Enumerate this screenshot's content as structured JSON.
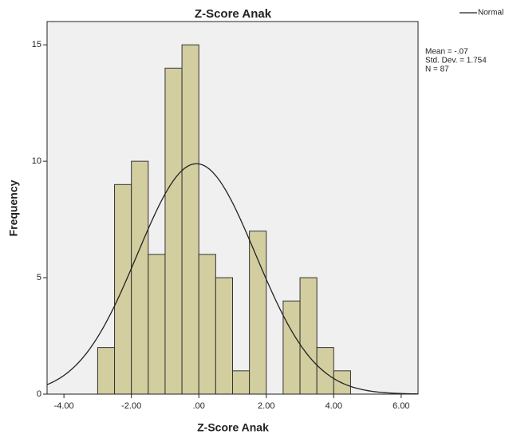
{
  "chart_data": {
    "type": "histogram",
    "title": "Z-Score Anak",
    "x_label": "Z-Score Anak",
    "y_label": "Frequency",
    "bins": [
      -3.0,
      -2.5,
      -2.0,
      -1.5,
      -1.0,
      -0.5,
      0.0,
      0.5,
      1.0,
      1.5,
      2.0,
      2.5,
      3.0,
      3.5,
      4.0,
      4.5
    ],
    "values": [
      2,
      9,
      10,
      6,
      14,
      15,
      6,
      5,
      1,
      7,
      0,
      4,
      5,
      2,
      1
    ],
    "color": "#d3cea0",
    "series": [
      {
        "name": "Normal",
        "color": "#222222",
        "mean": -0.07,
        "sd": 1.754,
        "n": 87
      }
    ],
    "stats": [
      "Mean = -.07",
      "Std. Dev. = 1.754",
      "N = 87"
    ],
    "xlim": [
      -4.5,
      6.5
    ],
    "ylim": [
      0,
      16
    ],
    "xticks": [
      {
        "value": -4,
        "label": "-4.00"
      },
      {
        "value": -2,
        "label": "-2.00"
      },
      {
        "value": 0,
        "label": ".00"
      },
      {
        "value": 2,
        "label": "2.00"
      },
      {
        "value": 4,
        "label": "4.00"
      },
      {
        "value": 6,
        "label": "6.00"
      }
    ],
    "yticks": [
      0,
      5,
      10,
      15
    ],
    "background": "#f0f0f0"
  }
}
